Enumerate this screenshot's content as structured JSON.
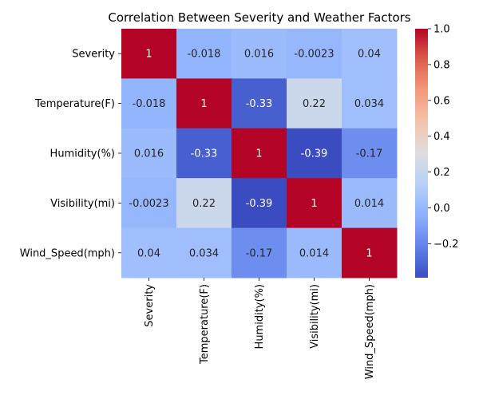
{
  "chart_data": {
    "type": "heatmap",
    "title": "Correlation Between Severity and Weather Factors",
    "xlabel": "",
    "ylabel": "",
    "row_labels": [
      "Severity",
      "Temperature(F)",
      "Humidity(%)",
      "Visibility(mi)",
      "Wind_Speed(mph)"
    ],
    "col_labels": [
      "Severity",
      "Temperature(F)",
      "Humidity(%)",
      "Visibility(mi)",
      "Wind_Speed(mph)"
    ],
    "values": [
      [
        1,
        -0.018,
        0.016,
        -0.0023,
        0.04
      ],
      [
        -0.018,
        1,
        -0.33,
        0.22,
        0.034
      ],
      [
        0.016,
        -0.33,
        1,
        -0.39,
        -0.17
      ],
      [
        -0.0023,
        0.22,
        -0.39,
        1,
        0.014
      ],
      [
        0.04,
        0.034,
        -0.17,
        0.014,
        1
      ]
    ],
    "cell_labels": [
      [
        "1",
        "-0.018",
        "0.016",
        "-0.0023",
        "0.04"
      ],
      [
        "-0.018",
        "1",
        "-0.33",
        "0.22",
        "0.034"
      ],
      [
        "0.016",
        "-0.33",
        "1",
        "-0.39",
        "-0.17"
      ],
      [
        "-0.0023",
        "0.22",
        "-0.39",
        "1",
        "0.014"
      ],
      [
        "0.04",
        "0.034",
        "-0.17",
        "0.014",
        "1"
      ]
    ],
    "colormap": "coolwarm",
    "colorbar": {
      "range": [
        -0.39,
        1.0
      ],
      "ticks": [
        -0.2,
        0.0,
        0.2,
        0.4,
        0.6,
        0.8,
        1.0
      ],
      "tick_labels": [
        "−0.2",
        "0.0",
        "0.2",
        "0.4",
        "0.6",
        "0.8",
        "1.0"
      ]
    },
    "grid": false,
    "legend": "colorbar-right"
  }
}
